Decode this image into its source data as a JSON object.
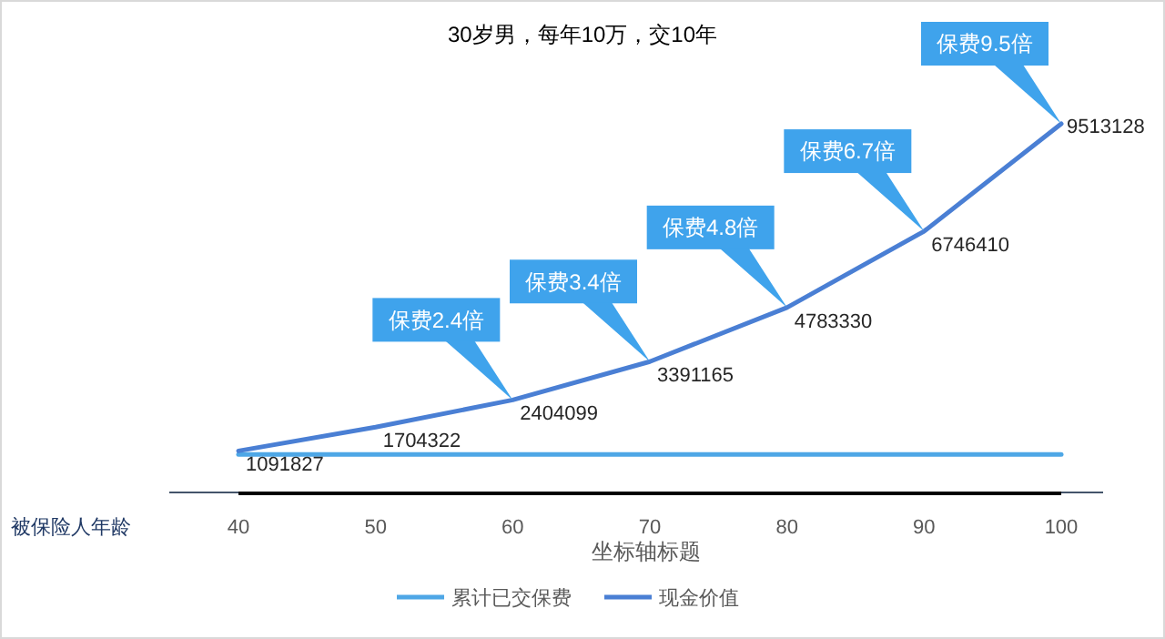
{
  "chart_data": {
    "type": "line",
    "title": "30岁男，每年10万，交10年",
    "xlabel": "坐标轴标题",
    "categories": [
      "40",
      "50",
      "60",
      "70",
      "80",
      "90",
      "100"
    ],
    "series": [
      {
        "name": "累计已交保费",
        "color": "#4ea7e6",
        "values": [
          1000000,
          1000000,
          1000000,
          1000000,
          1000000,
          1000000,
          1000000
        ]
      },
      {
        "name": "现金价值",
        "color": "#4a7fd4",
        "values": [
          1091827,
          1704322,
          2404099,
          3391165,
          4783330,
          6746410,
          9513128
        ],
        "value_labels": [
          "1091827",
          "1704322",
          "2404099",
          "3391165",
          "4783330",
          "6746410",
          "9513128"
        ]
      }
    ],
    "annotations": [
      "被保险人年龄",
      "保费2.4倍",
      "保费3.4倍",
      "保费4.8倍",
      "保费6.7倍",
      "保费9.5倍"
    ],
    "legend": "bottom",
    "grid": false,
    "marker": "none",
    "line_style": "solid",
    "tick_labels": "x"
  }
}
